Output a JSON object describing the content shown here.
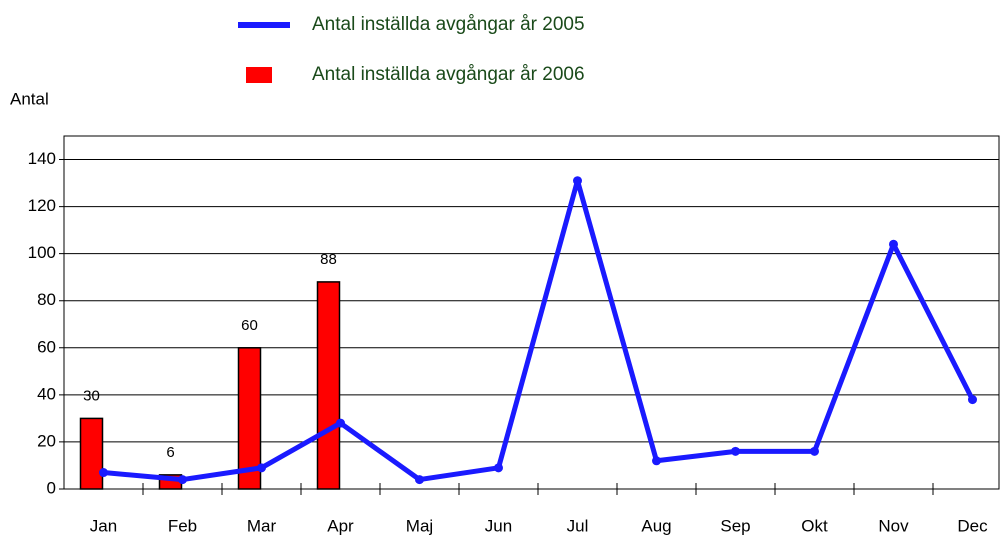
{
  "chart_data": {
    "type": "bar-line",
    "y_label": "Antal",
    "categories": [
      "Jan",
      "Feb",
      "Mar",
      "Apr",
      "Maj",
      "Jun",
      "Jul",
      "Aug",
      "Sep",
      "Okt",
      "Nov",
      "Dec"
    ],
    "series": [
      {
        "name": "Antal inställda avgångar år 2005",
        "type": "line",
        "color": "#1a1aff",
        "values": [
          7,
          4,
          9,
          28,
          4,
          9,
          131,
          12,
          16,
          16,
          104,
          38
        ]
      },
      {
        "name": "Antal inställda avgångar år 2006",
        "type": "bar",
        "color": "#ff0000",
        "values": [
          30,
          6,
          60,
          88,
          null,
          null,
          null,
          null,
          null,
          null,
          null,
          null
        ]
      }
    ],
    "ylim": [
      0,
      150
    ],
    "yticks": [
      0,
      20,
      40,
      60,
      80,
      100,
      120,
      140
    ],
    "grid": true
  }
}
